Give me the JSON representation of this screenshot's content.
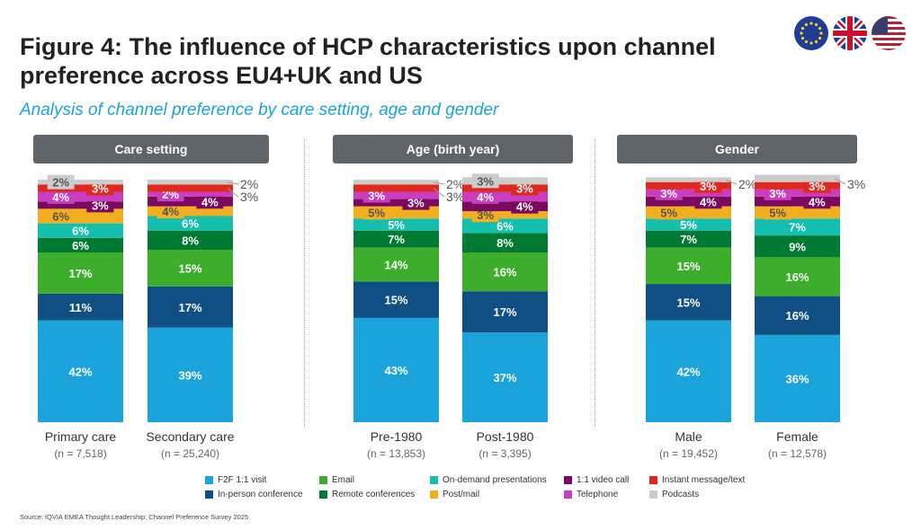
{
  "header": {
    "title": "Figure 4: The influence of HCP characteristics upon channel preference across EU4+UK and US",
    "subtitle": "Analysis of channel preference by care setting, age and gender",
    "flags": [
      "eu-flag-icon",
      "uk-flag-icon",
      "us-flag-icon"
    ]
  },
  "panels": [
    {
      "title": "Care setting"
    },
    {
      "title": "Age (birth year)"
    },
    {
      "title": "Gender"
    }
  ],
  "source": "Source: IQVIA EMEA Thought Leadership; Channel Preference Survey 2025",
  "chart_data": {
    "type": "bar",
    "stacked": true,
    "unit": "%",
    "series": [
      {
        "name": "F2F 1:1 visit",
        "color": "#1ba3dc",
        "values": [
          42,
          39,
          43,
          37,
          42,
          36
        ]
      },
      {
        "name": "In-person conference",
        "color": "#0f4f83",
        "values": [
          11,
          17,
          15,
          17,
          15,
          16
        ]
      },
      {
        "name": "Email",
        "color": "#3dae2b",
        "values": [
          17,
          15,
          14,
          16,
          15,
          16
        ]
      },
      {
        "name": "Remote conferences",
        "color": "#007a33",
        "values": [
          6,
          8,
          7,
          8,
          7,
          9
        ]
      },
      {
        "name": "On-demand presentations",
        "color": "#14bfae",
        "values": [
          6,
          6,
          5,
          6,
          5,
          7
        ]
      },
      {
        "name": "Post/mail",
        "color": "#f3ae1f",
        "values": [
          6,
          4,
          5,
          3,
          5,
          5
        ]
      },
      {
        "name": "1:1 video call",
        "color": "#7b0a5e",
        "values": [
          3,
          4,
          3,
          4,
          4,
          4
        ]
      },
      {
        "name": "Telephone",
        "color": "#c93dbf",
        "values": [
          4,
          2,
          3,
          4,
          3,
          3
        ]
      },
      {
        "name": "Instant message/text",
        "color": "#e0291c",
        "values": [
          3,
          3,
          3,
          3,
          3,
          3
        ]
      },
      {
        "name": "Podcasts",
        "color": "#cccccc",
        "values": [
          2,
          2,
          2,
          3,
          2,
          3
        ]
      }
    ],
    "categories": [
      {
        "label": "Primary care",
        "n": "(n = 7,518)",
        "panel": 0
      },
      {
        "label": "Secondary care",
        "n": "(n = 25,240)",
        "panel": 0
      },
      {
        "label": "Pre-1980",
        "n": "(n = 13,853)",
        "panel": 1
      },
      {
        "label": "Post-1980",
        "n": "(n = 3,395)",
        "panel": 1
      },
      {
        "label": "Male",
        "n": "(n = 19,452)",
        "panel": 2
      },
      {
        "label": "Female",
        "n": "(n = 12,578)",
        "panel": 2
      }
    ],
    "legend_placement": "bottom"
  }
}
